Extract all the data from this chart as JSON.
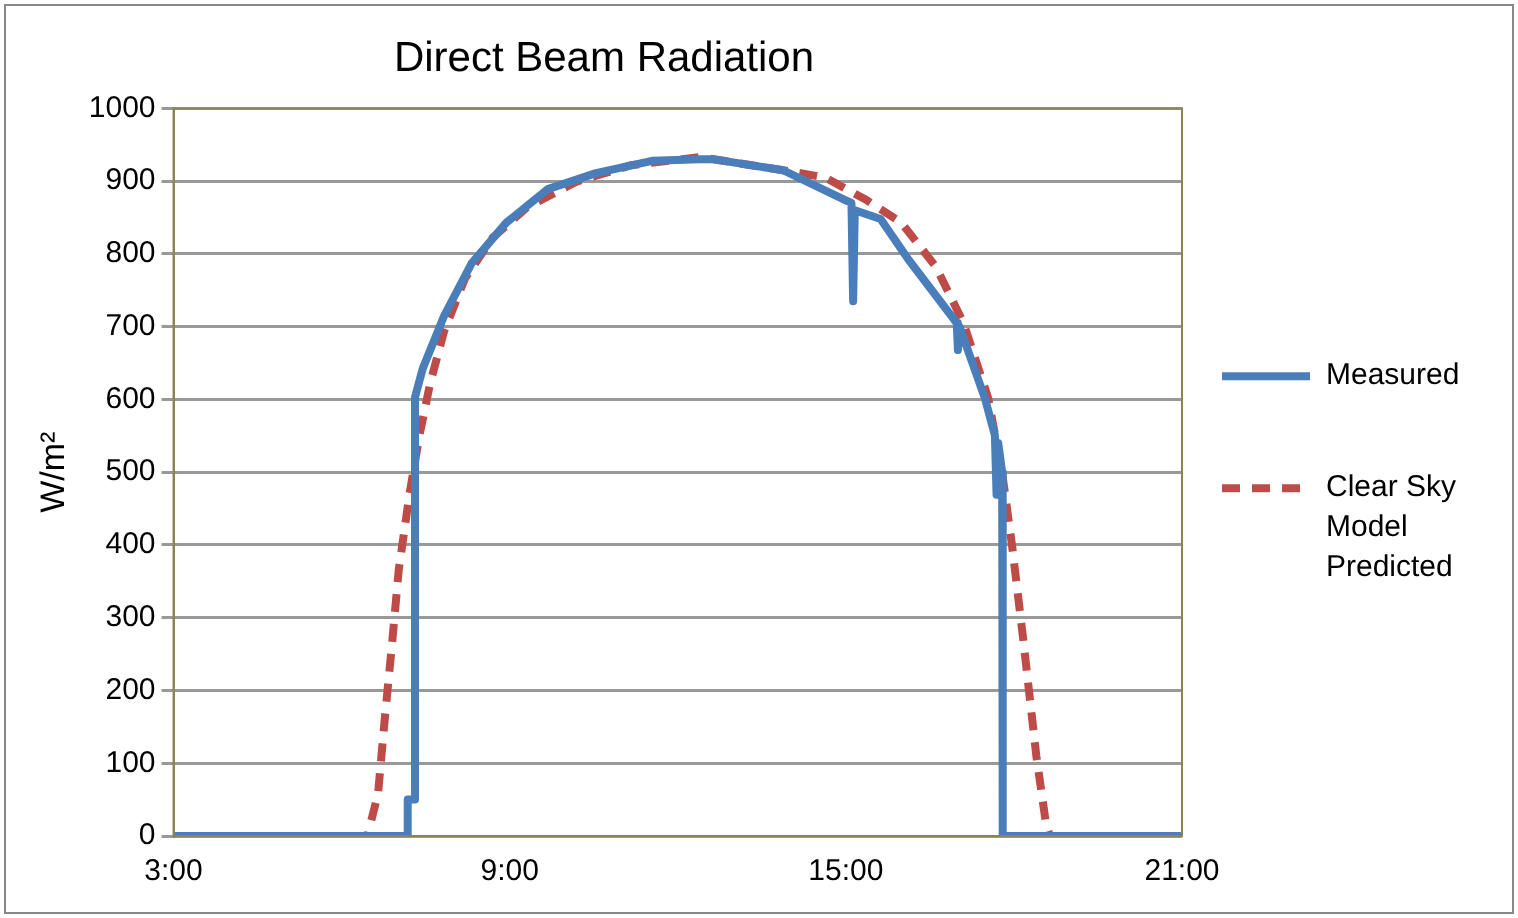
{
  "chart_data": {
    "type": "line",
    "title": "Direct Beam Radiation",
    "ylabel": "W/m²",
    "xlim": [
      3,
      21
    ],
    "xticks": [
      {
        "value": 3,
        "label": "3:00"
      },
      {
        "value": 9,
        "label": "9:00"
      },
      {
        "value": 15,
        "label": "15:00"
      },
      {
        "value": 21,
        "label": "21:00"
      }
    ],
    "ylim": [
      0,
      1000
    ],
    "yticks": [
      0,
      100,
      200,
      300,
      400,
      500,
      600,
      700,
      800,
      900,
      1000
    ],
    "grid": "y",
    "legend": "right",
    "marker": "none",
    "series": [
      {
        "name": "Measured",
        "color": "#4a7ebb",
        "line_style": "solid",
        "x": [
          3,
          7.15,
          7.18,
          7.3,
          7.31,
          7.45,
          7.83,
          8.32,
          8.94,
          9.68,
          10.54,
          11.54,
          12.4,
          12.65,
          13.88,
          14.99,
          15.1,
          15.13,
          15.16,
          15.62,
          16.12,
          16.98,
          17.0,
          17.03,
          17.48,
          17.66,
          17.69,
          17.72,
          17.79,
          17.8,
          21
        ],
        "values": [
          0,
          0,
          50,
          50,
          603,
          643,
          715,
          787,
          843,
          889,
          911,
          928,
          930,
          930,
          915,
          874,
          870,
          735,
          860,
          848,
          792,
          705,
          668,
          700,
          602,
          551,
          469,
          540,
          500,
          0,
          0
        ]
      },
      {
        "name": "Clear Sky Model Predicted",
        "color": "#be4b48",
        "line_style": "dashed",
        "x": [
          3,
          6.46,
          6.65,
          6.77,
          6.9,
          7.02,
          7.21,
          7.39,
          7.58,
          7.83,
          8.2,
          8.69,
          9.31,
          10.18,
          11.17,
          12.4,
          13.88,
          14.63,
          15.37,
          15.99,
          16.61,
          17.1,
          17.54,
          17.79,
          17.97,
          18.16,
          18.28,
          18.4,
          18.57,
          18.64,
          21
        ],
        "values": [
          0,
          0,
          58,
          161,
          264,
          366,
          469,
          551,
          622,
          694,
          766,
          822,
          864,
          899,
          922,
          933,
          915,
          905,
          874,
          843,
          782,
          705,
          602,
          499,
          397,
          274,
          192,
          110,
          18,
          0,
          0
        ]
      }
    ]
  }
}
